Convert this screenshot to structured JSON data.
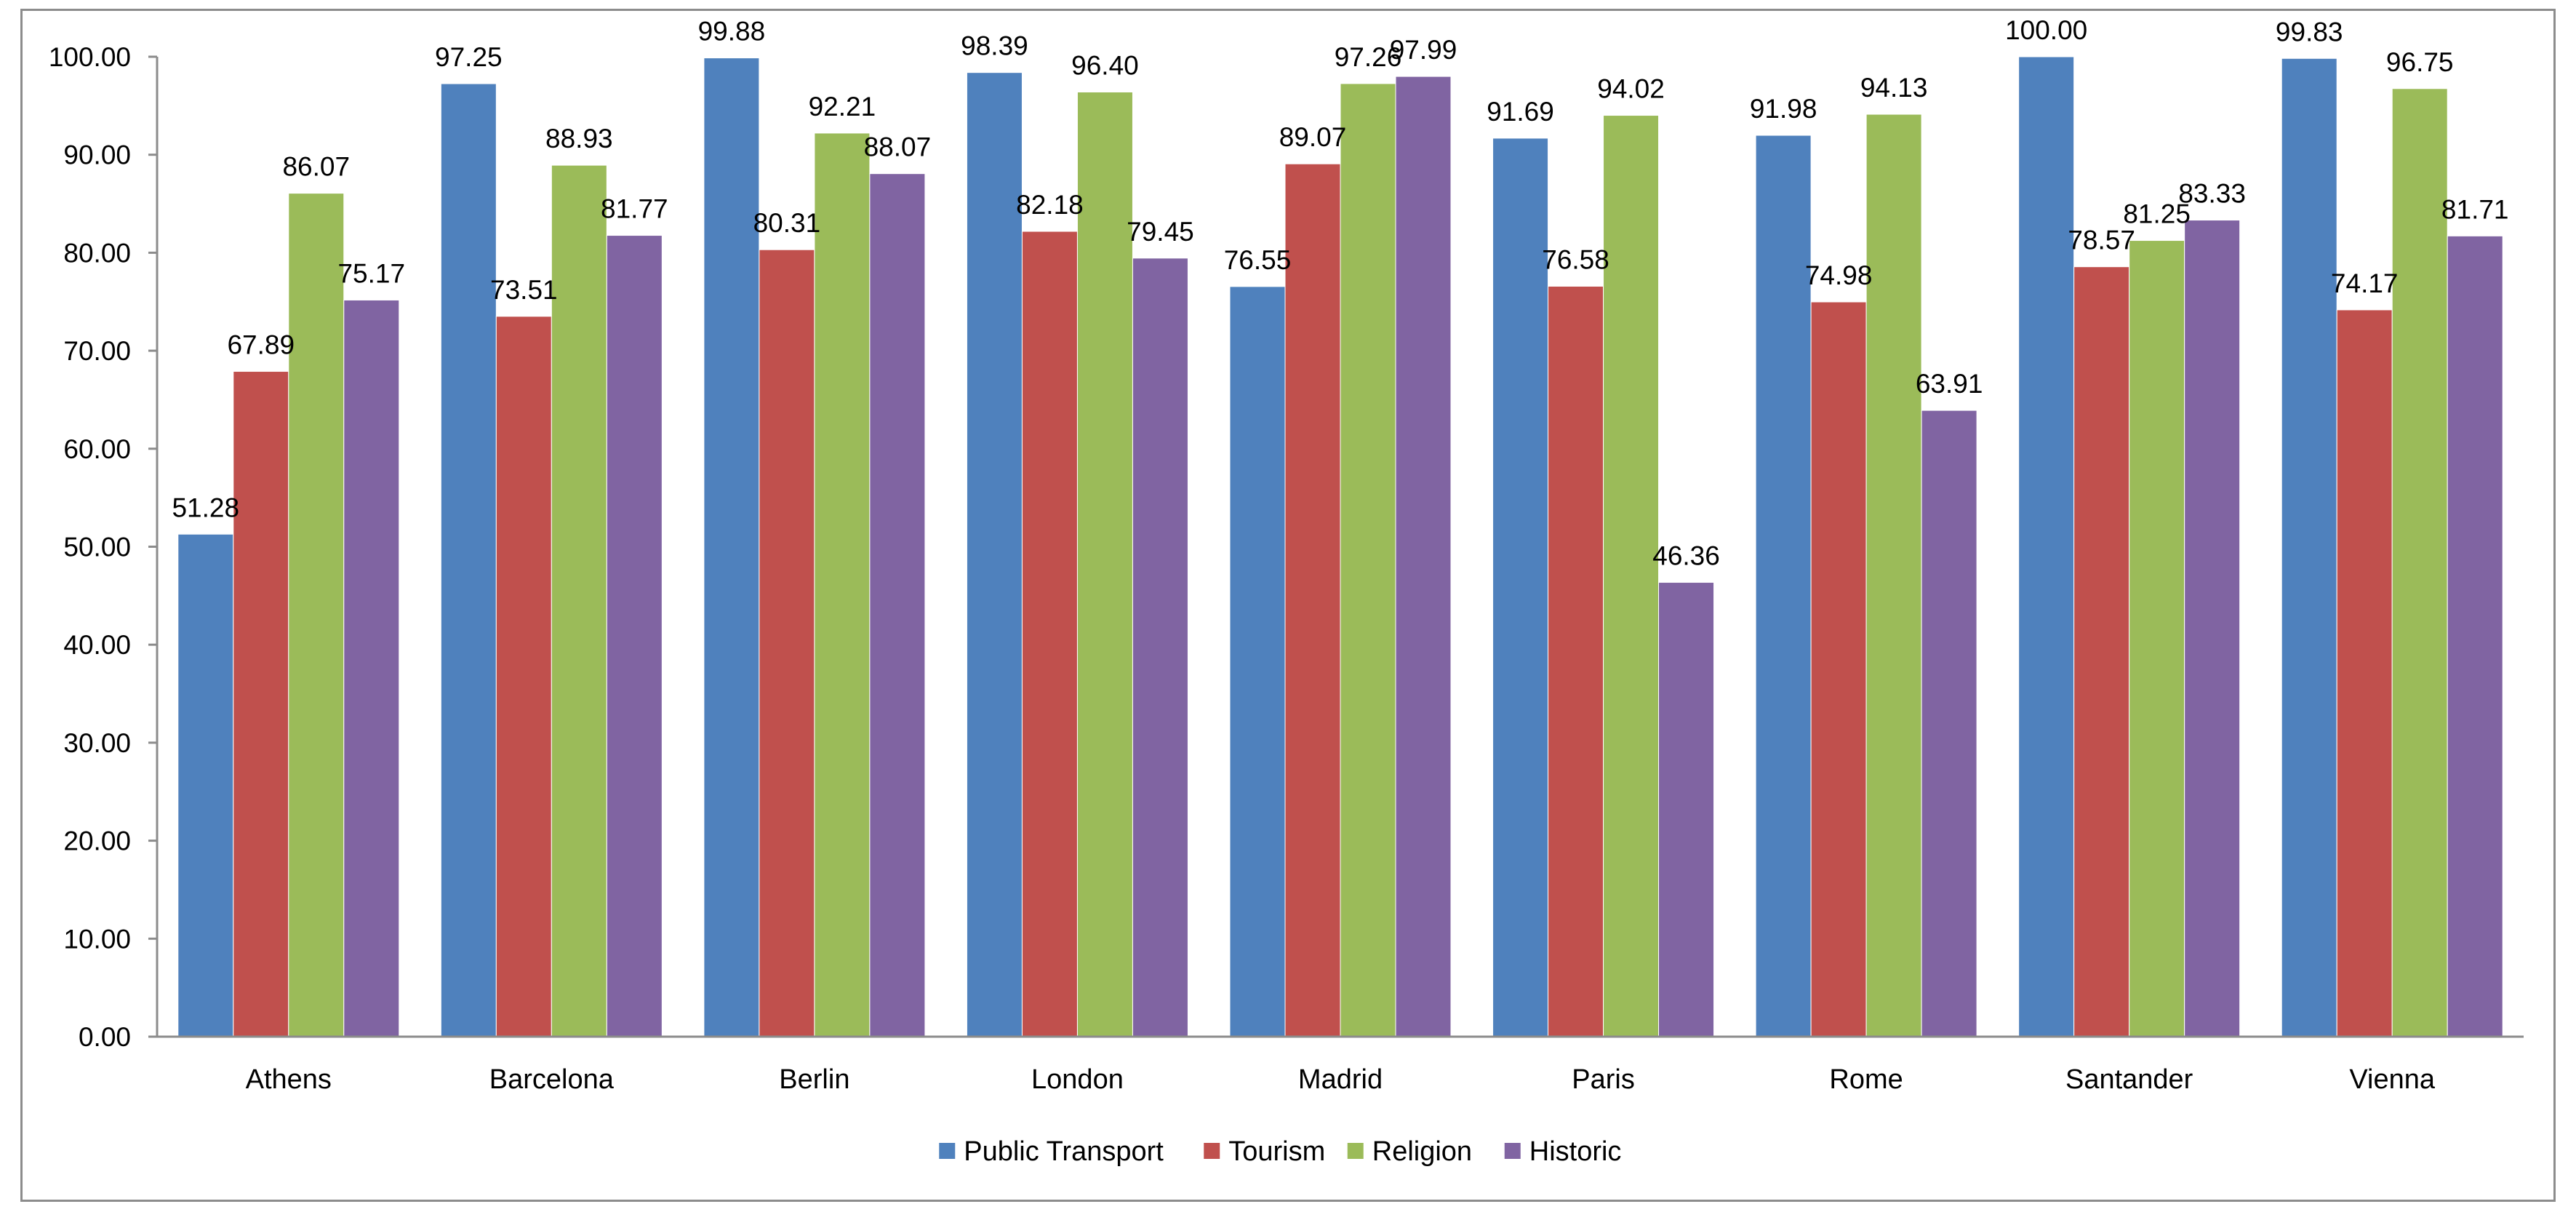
{
  "chart_data": {
    "type": "bar",
    "title": "",
    "xlabel": "",
    "ylabel": "",
    "ylim": [
      0,
      100
    ],
    "y_ticks": [
      "0.00",
      "10.00",
      "20.00",
      "30.00",
      "40.00",
      "50.00",
      "60.00",
      "70.00",
      "80.00",
      "90.00",
      "100.00"
    ],
    "grid": false,
    "legend_position": "bottom",
    "categories": [
      "Athens",
      "Barcelona",
      "Berlin",
      "London",
      "Madrid",
      "Paris",
      "Rome",
      "Santander",
      "Vienna"
    ],
    "series": [
      {
        "name": "Public Transport",
        "color": "#4F81BD",
        "values": [
          51.28,
          97.25,
          99.88,
          98.39,
          76.55,
          91.69,
          91.98,
          100.0,
          99.83
        ],
        "labels": [
          "51.28",
          "97.25",
          "99.88",
          "98.39",
          "76.55",
          "91.69",
          "91.98",
          "100.00",
          "99.83"
        ]
      },
      {
        "name": "Tourism",
        "color": "#C0504D",
        "values": [
          67.89,
          73.51,
          80.31,
          82.18,
          89.07,
          76.58,
          74.98,
          78.57,
          74.17
        ],
        "labels": [
          "67.89",
          "73.51",
          "80.31",
          "82.18",
          "89.07",
          "76.58",
          "74.98",
          "78.57",
          "74.17"
        ]
      },
      {
        "name": "Religion",
        "color": "#9BBB59",
        "values": [
          86.07,
          88.93,
          92.21,
          96.4,
          97.26,
          94.02,
          94.13,
          81.25,
          96.75
        ],
        "labels": [
          "86.07",
          "88.93",
          "92.21",
          "96.40",
          "97.26",
          "94.02",
          "94.13",
          "81.25",
          "96.75"
        ]
      },
      {
        "name": "Historic",
        "color": "#8064A2",
        "values": [
          75.17,
          81.77,
          88.07,
          79.45,
          97.99,
          46.36,
          63.91,
          83.33,
          81.71
        ],
        "labels": [
          "75.17",
          "81.77",
          "88.07",
          "79.45",
          "97.99",
          "46.36",
          "63.91",
          "83.33",
          "81.71"
        ]
      }
    ]
  }
}
